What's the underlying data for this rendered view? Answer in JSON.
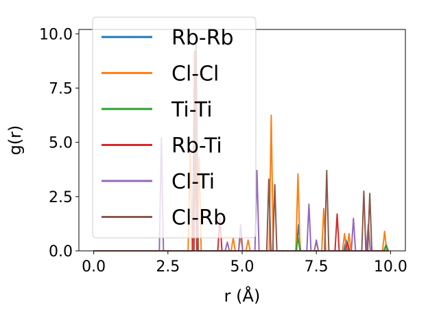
{
  "chart_data": {
    "type": "line",
    "xlabel": "r (Å)",
    "ylabel": "g(r)",
    "xlim": [
      -0.5,
      10.5
    ],
    "ylim": [
      0,
      10.2
    ],
    "xticks": [
      0.0,
      2.5,
      5.0,
      7.5,
      10.0
    ],
    "xtick_labels": [
      "0.0",
      "2.5",
      "5.0",
      "7.5",
      "10.0"
    ],
    "yticks": [
      0.0,
      2.5,
      5.0,
      7.5,
      10.0
    ],
    "ytick_labels": [
      "0.0",
      "2.5",
      "5.0",
      "7.5",
      "10.0"
    ],
    "grid": false,
    "legend": "upper-left",
    "series": [
      {
        "name": "Rb-Rb",
        "color": "#1f77b4",
        "peaks": [
          [
            6.9,
            1.2
          ],
          [
            8.5,
            0.5
          ],
          [
            9.85,
            0.3
          ]
        ]
      },
      {
        "name": "Cl-Cl",
        "color": "#ff7f0e",
        "peaks": [
          [
            3.25,
            4.5
          ],
          [
            3.55,
            4.3
          ],
          [
            4.7,
            0.6
          ],
          [
            4.95,
            0.7
          ],
          [
            5.2,
            0.5
          ],
          [
            5.98,
            6.25
          ],
          [
            6.88,
            3.55
          ],
          [
            7.5,
            0.4
          ],
          [
            7.75,
            1.95
          ],
          [
            8.45,
            0.8
          ],
          [
            8.6,
            0.8
          ],
          [
            9.8,
            0.9
          ]
        ]
      },
      {
        "name": "Ti-Ti",
        "color": "#2ca02c",
        "peaks": [
          [
            6.88,
            0.6
          ],
          [
            9.85,
            0.25
          ]
        ]
      },
      {
        "name": "Rb-Ti",
        "color": "#d62728",
        "peaks": [
          [
            3.4,
            9.2
          ],
          [
            4.25,
            1.5
          ],
          [
            8.2,
            1.7
          ],
          [
            8.55,
            0.4
          ]
        ]
      },
      {
        "name": "Cl-Ti",
        "color": "#9467bd",
        "peaks": [
          [
            2.28,
            5.2
          ],
          [
            4.5,
            0.4
          ],
          [
            4.95,
            1.2
          ],
          [
            5.5,
            3.7
          ],
          [
            7.25,
            2.15
          ],
          [
            7.5,
            0.5
          ],
          [
            8.75,
            1.5
          ],
          [
            9.25,
            1.2
          ]
        ]
      },
      {
        "name": "Cl-Rb",
        "color": "#8c564b",
        "peaks": [
          [
            3.45,
            9.5
          ],
          [
            5.9,
            3.3
          ],
          [
            6.1,
            3.05
          ],
          [
            7.85,
            3.7
          ],
          [
            9.1,
            2.75
          ],
          [
            9.3,
            2.65
          ]
        ]
      }
    ]
  }
}
